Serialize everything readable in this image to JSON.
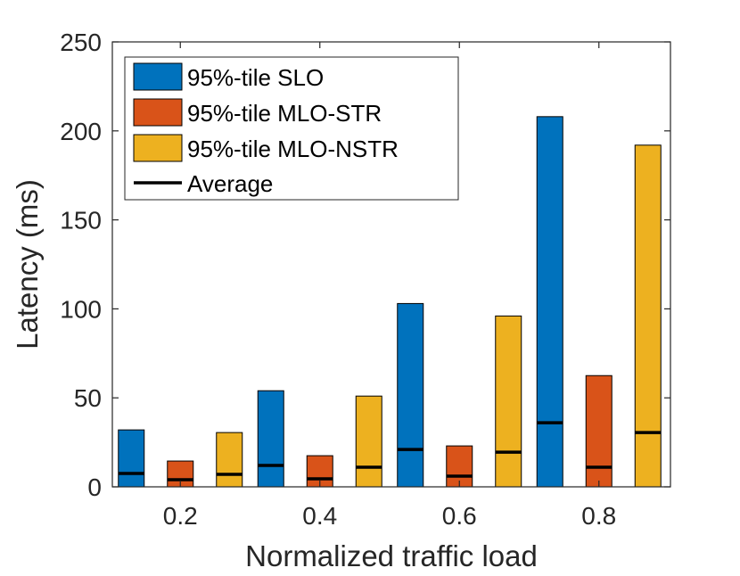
{
  "chart_data": {
    "type": "bar",
    "title": "",
    "xlabel": "Normalized traffic load",
    "ylabel": "Latency (ms)",
    "categories": [
      "0.2",
      "0.4",
      "0.6",
      "0.8"
    ],
    "ylim": [
      0,
      250
    ],
    "yticks": [
      0,
      50,
      100,
      150,
      200,
      250
    ],
    "grid": false,
    "legend_position": "top-left",
    "series": [
      {
        "name": "95%-tile SLO",
        "color": "#0072BD",
        "values": [
          32,
          54,
          103,
          208
        ],
        "average": [
          7.5,
          12,
          21,
          36
        ]
      },
      {
        "name": "95%-tile MLO-STR",
        "color": "#D95319",
        "values": [
          14.5,
          17.5,
          23,
          62.5
        ],
        "average": [
          4,
          4.5,
          6,
          11
        ]
      },
      {
        "name": "95%-tile MLO-NSTR",
        "color": "#EDB120",
        "values": [
          30.5,
          51,
          96,
          192
        ],
        "average": [
          7,
          11,
          19.5,
          30.5
        ]
      }
    ],
    "average_legend_label": "Average",
    "average_color": "#000000"
  }
}
